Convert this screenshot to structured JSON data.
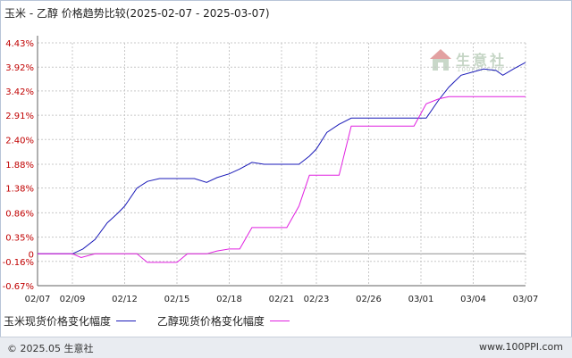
{
  "title": "玉米 - 乙醇 价格趋势比较(2025-02-07 - 2025-03-07)",
  "watermark": {
    "text": "生意社",
    "sub": "100PPI.COM"
  },
  "footer": {
    "copyright": "© 2025.05 生意社",
    "site": "www.100PPI.com"
  },
  "colors": {
    "corn": "#1a1ab8",
    "ethanol": "#e020e0",
    "grid": "#c8c8c8",
    "axis": "#606060"
  },
  "chart_data": {
    "type": "line",
    "y_ticks": [
      "4.43%",
      "3.92%",
      "3.42%",
      "2.91%",
      "2.40%",
      "1.88%",
      "1.38%",
      "0.86%",
      "0.35%",
      "0",
      "-0.16%",
      "-0.67%"
    ],
    "y_tick_values": [
      4.43,
      3.92,
      3.42,
      2.91,
      2.4,
      1.88,
      1.38,
      0.86,
      0.35,
      0,
      -0.16,
      -0.67
    ],
    "ylim": [
      -0.67,
      4.43
    ],
    "x_ticks": [
      "02/07",
      "02/09",
      "02/12",
      "02/15",
      "02/18",
      "02/21",
      "02/23",
      "02/26",
      "03/01",
      "03/04",
      "03/07"
    ],
    "x_tick_days": [
      0,
      2,
      5,
      8,
      11,
      14,
      16,
      19,
      22,
      25,
      28
    ],
    "grid": true,
    "legend_position": "bottom-left",
    "series": [
      {
        "name": "玉米现货价格变化幅度",
        "color": "#1a1ab8",
        "days": [
          0,
          1,
          2,
          2.6,
          3.3,
          4,
          4.6,
          5,
          5.7,
          6.3,
          7,
          7.6,
          8,
          8.6,
          9,
          9.7,
          10.3,
          11,
          11.6,
          12.3,
          13,
          13.6,
          14.3,
          15,
          15.6,
          16,
          16.6,
          17.3,
          18,
          18.6,
          19,
          19.6,
          20.3,
          21,
          21.6,
          22.3,
          23,
          23.6,
          24.3,
          25,
          25.6,
          26.3,
          26.7,
          27.3,
          28
        ],
        "values": [
          0,
          0,
          0,
          0.1,
          0.3,
          0.65,
          0.85,
          1.0,
          1.38,
          1.52,
          1.58,
          1.58,
          1.58,
          1.58,
          1.58,
          1.5,
          1.6,
          1.68,
          1.78,
          1.92,
          1.88,
          1.88,
          1.88,
          1.88,
          2.05,
          2.2,
          2.55,
          2.72,
          2.85,
          2.85,
          2.85,
          2.85,
          2.85,
          2.85,
          2.85,
          2.85,
          3.22,
          3.5,
          3.75,
          3.82,
          3.88,
          3.85,
          3.75,
          3.88,
          4.02
        ]
      },
      {
        "name": "乙醇现货价格变化幅度",
        "color": "#e020e0",
        "days": [
          0,
          1,
          2,
          2.5,
          3.3,
          4,
          4.6,
          5,
          5.7,
          6.3,
          7,
          7.6,
          8,
          8.6,
          9,
          9.7,
          10.3,
          11,
          11.6,
          12.3,
          13,
          13.6,
          14.3,
          15,
          15.6,
          16,
          16.6,
          17.3,
          18,
          18.6,
          19,
          19.6,
          20.3,
          21,
          21.6,
          22.3,
          23,
          23.6,
          24.3,
          25,
          25.6,
          26.3,
          26.7,
          27.3,
          28
        ],
        "values": [
          0,
          0,
          0,
          -0.08,
          0,
          0,
          0,
          0,
          0,
          -0.18,
          -0.18,
          -0.18,
          -0.18,
          0,
          0,
          0,
          0.06,
          0.1,
          0.1,
          0.55,
          0.55,
          0.55,
          0.55,
          1.0,
          1.65,
          1.65,
          1.65,
          1.65,
          2.68,
          2.68,
          2.68,
          2.68,
          2.68,
          2.68,
          2.68,
          3.15,
          3.25,
          3.3,
          3.3,
          3.3,
          3.3,
          3.3,
          3.3,
          3.3,
          3.3
        ]
      }
    ]
  }
}
